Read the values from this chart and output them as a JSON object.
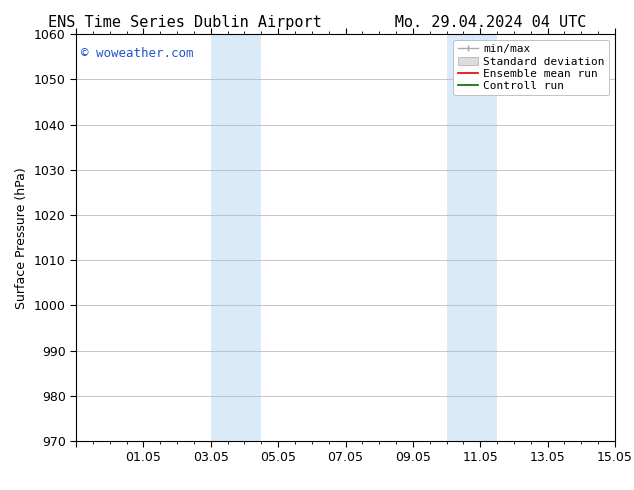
{
  "title_left": "ENS Time Series Dublin Airport",
  "title_right": "Mo. 29.04.2024 04 UTC",
  "ylabel": "Surface Pressure (hPa)",
  "ylim": [
    970,
    1060
  ],
  "yticks": [
    970,
    980,
    990,
    1000,
    1010,
    1020,
    1030,
    1040,
    1050,
    1060
  ],
  "xlim_days": [
    0,
    16
  ],
  "x_major_positions": [
    0,
    2,
    4,
    6,
    8,
    10,
    12,
    14,
    16
  ],
  "x_major_labels": [
    "",
    "01.05",
    "03.05",
    "05.05",
    "07.05",
    "09.05",
    "11.05",
    "13.05",
    "15.05"
  ],
  "watermark": "© woweather.com",
  "watermark_color": "#2255cc",
  "shaded_bands": [
    {
      "x_start": 4.0,
      "x_end": 5.5
    },
    {
      "x_start": 11.0,
      "x_end": 12.5
    }
  ],
  "shade_color": "#daeaf8",
  "legend_labels": [
    "min/max",
    "Standard deviation",
    "Ensemble mean run",
    "Controll run"
  ],
  "legend_line_colors": [
    "#aaaaaa",
    "#cccccc",
    "#dd0000",
    "#006600"
  ],
  "background_color": "#ffffff",
  "plot_bg_color": "#ffffff",
  "spine_color": "#000000",
  "grid_color": "#bbbbbb",
  "title_fontsize": 11,
  "axis_label_fontsize": 9,
  "tick_fontsize": 9,
  "watermark_fontsize": 9,
  "legend_fontsize": 8
}
